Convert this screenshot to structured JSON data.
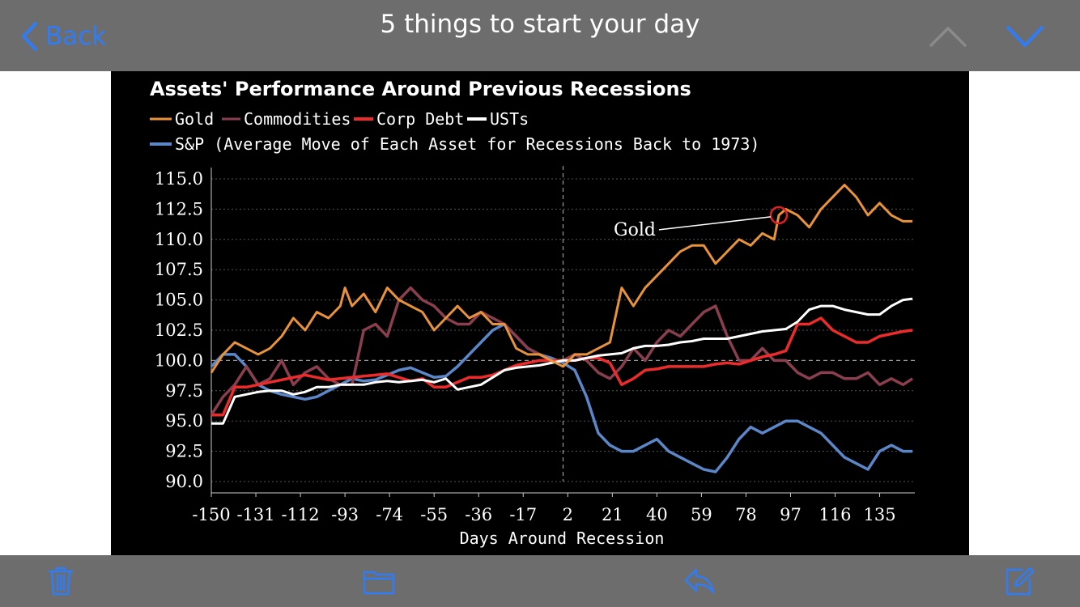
{
  "nav": {
    "back_label": "Back",
    "title": "5 things to start your day",
    "up_icon": "chevron-up-icon",
    "down_icon": "chevron-down-icon"
  },
  "toolbar": {
    "icons": [
      "trash-icon",
      "folder-icon",
      "reply-icon",
      "compose-icon"
    ]
  },
  "colors": {
    "accent": "#2f7df6",
    "bar": "#6d6d6d",
    "gold": "#e8923a",
    "commodities": "#8b3f4e",
    "corp_debt": "#ee2b2b",
    "usts": "#ffffff",
    "sp": "#5b87c9"
  },
  "chart_data": {
    "type": "line",
    "title": "Assets' Performance Around Previous Recessions",
    "legend": [
      "Gold",
      "Commodities",
      "Corp Debt",
      "USTs"
    ],
    "legend_note": "S&P (Average Move of Each Asset for Recessions Back to 1973)",
    "xlabel": "Days Around Recession",
    "ylabel": "",
    "xlim": [
      -150,
      150
    ],
    "ylim": [
      90,
      115
    ],
    "x_ticks": [
      "-150",
      "-131",
      "-112",
      "-93",
      "-74",
      "-55",
      "-36",
      "-17",
      "2",
      "21",
      "40",
      "59",
      "78",
      "97",
      "116",
      "135"
    ],
    "y_ticks": [
      "115.0",
      "112.5",
      "110.0",
      "107.5",
      "105.0",
      "102.5",
      "100.0",
      "97.5",
      "95.0",
      "92.5",
      "90.0"
    ],
    "annotation": {
      "text": "Gold",
      "x": 92,
      "y": 112
    },
    "series": [
      {
        "name": "Gold",
        "color": "#e8923a",
        "x": [
          -150,
          -145,
          -140,
          -135,
          -130,
          -125,
          -120,
          -115,
          -110,
          -105,
          -100,
          -95,
          -93,
          -90,
          -85,
          -80,
          -75,
          -70,
          -65,
          -60,
          -55,
          -50,
          -45,
          -40,
          -35,
          -30,
          -25,
          -20,
          -15,
          -10,
          -5,
          0,
          5,
          10,
          15,
          20,
          25,
          30,
          35,
          40,
          45,
          50,
          55,
          60,
          65,
          70,
          75,
          80,
          85,
          90,
          92,
          95,
          100,
          105,
          110,
          115,
          120,
          125,
          130,
          135,
          140,
          145,
          149
        ],
        "y": [
          99,
          100.5,
          101.5,
          101,
          100.5,
          101,
          102,
          103.5,
          102.5,
          104,
          103.5,
          104.5,
          106,
          104.5,
          105.5,
          104,
          106,
          105,
          104.5,
          104,
          102.5,
          103.5,
          104.5,
          103.5,
          104,
          103,
          103,
          101,
          100.5,
          100.5,
          100,
          99.5,
          100.5,
          100.5,
          101,
          101.5,
          106,
          104.5,
          106,
          107,
          108,
          109,
          109.5,
          109.5,
          108,
          109,
          110,
          109.5,
          110.5,
          110,
          112,
          112.5,
          112,
          111,
          112.5,
          113.5,
          114.5,
          113.5,
          112,
          113,
          112,
          111.5,
          111.5
        ]
      },
      {
        "name": "Commodities",
        "color": "#8b3f4e",
        "x": [
          -150,
          -145,
          -140,
          -135,
          -130,
          -125,
          -120,
          -115,
          -110,
          -105,
          -100,
          -95,
          -90,
          -85,
          -80,
          -75,
          -70,
          -65,
          -60,
          -55,
          -50,
          -45,
          -40,
          -35,
          -30,
          -25,
          -20,
          -15,
          -10,
          -5,
          0,
          5,
          10,
          15,
          20,
          25,
          30,
          35,
          40,
          45,
          50,
          55,
          60,
          65,
          70,
          75,
          80,
          85,
          90,
          95,
          100,
          105,
          110,
          115,
          120,
          125,
          130,
          135,
          140,
          145,
          149
        ],
        "y": [
          95.5,
          97,
          98,
          99.5,
          98,
          98.5,
          100,
          98,
          99,
          99.5,
          98.5,
          98,
          98,
          102.5,
          103,
          102,
          105,
          106,
          105,
          104.5,
          103.5,
          103,
          103,
          104,
          103.5,
          103,
          102,
          101,
          100.5,
          100,
          100,
          100.5,
          100,
          99,
          98.5,
          99.5,
          101,
          100,
          101.5,
          102.5,
          102,
          103,
          104,
          104.5,
          102,
          100,
          100,
          101,
          100,
          100,
          99,
          98.5,
          99,
          99,
          98.5,
          98.5,
          99,
          98,
          98.5,
          98,
          98.5
        ]
      },
      {
        "name": "Corp Debt",
        "color": "#ee2b2b",
        "x": [
          -150,
          -145,
          -140,
          -135,
          -130,
          -125,
          -120,
          -115,
          -110,
          -105,
          -100,
          -95,
          -90,
          -85,
          -80,
          -75,
          -70,
          -65,
          -60,
          -55,
          -50,
          -45,
          -40,
          -35,
          -30,
          -25,
          -20,
          -15,
          -10,
          -5,
          0,
          5,
          10,
          15,
          20,
          25,
          30,
          35,
          40,
          45,
          50,
          55,
          60,
          65,
          70,
          75,
          80,
          85,
          90,
          95,
          100,
          105,
          110,
          115,
          120,
          125,
          130,
          135,
          140,
          145,
          149
        ],
        "y": [
          95.5,
          95.5,
          97.8,
          97.8,
          98,
          98.2,
          98.4,
          98.6,
          98.8,
          98.6,
          98.4,
          98.5,
          98.6,
          98.7,
          98.8,
          98.9,
          98.6,
          98.3,
          98.5,
          97.8,
          97.8,
          98.2,
          98.6,
          98.6,
          98.8,
          99.2,
          99.6,
          99.8,
          100,
          100,
          100,
          100,
          100.2,
          100.2,
          99.8,
          98,
          98.5,
          99.2,
          99.3,
          99.5,
          99.5,
          99.5,
          99.5,
          99.7,
          99.8,
          99.7,
          100,
          100.3,
          100.5,
          100.8,
          103,
          103,
          103.5,
          102.5,
          102,
          101.5,
          101.5,
          102,
          102.2,
          102.4,
          102.5
        ]
      },
      {
        "name": "USTs",
        "color": "#ffffff",
        "x": [
          -150,
          -145,
          -140,
          -135,
          -130,
          -125,
          -120,
          -115,
          -110,
          -105,
          -100,
          -95,
          -90,
          -85,
          -80,
          -75,
          -70,
          -65,
          -60,
          -55,
          -50,
          -45,
          -40,
          -35,
          -30,
          -25,
          -20,
          -15,
          -10,
          -5,
          0,
          5,
          10,
          15,
          20,
          25,
          30,
          35,
          40,
          45,
          50,
          55,
          60,
          65,
          70,
          75,
          80,
          85,
          90,
          95,
          100,
          105,
          110,
          115,
          120,
          125,
          130,
          135,
          140,
          145,
          149
        ],
        "y": [
          94.8,
          94.8,
          97,
          97.2,
          97.4,
          97.5,
          97.5,
          97.2,
          97.4,
          97.8,
          97.8,
          98,
          98,
          98,
          98.2,
          98.3,
          98.2,
          98.3,
          98.4,
          98.2,
          98.5,
          97.6,
          97.8,
          98,
          98.6,
          99.2,
          99.4,
          99.5,
          99.6,
          99.8,
          100,
          100,
          100.2,
          100.4,
          100.5,
          100.6,
          101,
          101.2,
          101.2,
          101.3,
          101.5,
          101.6,
          101.8,
          101.8,
          101.8,
          102,
          102.2,
          102.4,
          102.5,
          102.6,
          103.2,
          104.2,
          104.5,
          104.5,
          104.2,
          104,
          103.8,
          103.8,
          104.5,
          105,
          105.1
        ]
      },
      {
        "name": "S&P",
        "color": "#5b87c9",
        "x": [
          -150,
          -145,
          -140,
          -135,
          -130,
          -125,
          -120,
          -115,
          -110,
          -105,
          -100,
          -95,
          -90,
          -85,
          -80,
          -75,
          -70,
          -65,
          -60,
          -55,
          -50,
          -45,
          -40,
          -35,
          -30,
          -25,
          -20,
          -15,
          -10,
          -5,
          0,
          5,
          10,
          15,
          20,
          25,
          30,
          35,
          40,
          45,
          50,
          55,
          60,
          65,
          70,
          75,
          80,
          85,
          90,
          95,
          100,
          105,
          110,
          115,
          120,
          125,
          130,
          135,
          140,
          145,
          149
        ],
        "y": [
          99.5,
          100.5,
          100.5,
          99.5,
          98,
          97.5,
          97.2,
          97,
          96.8,
          97,
          97.5,
          98,
          98.5,
          98.3,
          98.4,
          98.8,
          99.2,
          99.4,
          99,
          98.6,
          98.7,
          99.5,
          100.5,
          101.5,
          102.5,
          103,
          102,
          101,
          100.5,
          100.2,
          99.8,
          99.2,
          97,
          94,
          93,
          92.5,
          92.5,
          93,
          93.5,
          92.5,
          92,
          91.5,
          91,
          90.8,
          92,
          93.5,
          94.5,
          94,
          94.5,
          95,
          95,
          94.5,
          94,
          93,
          92,
          91.5,
          91,
          92.5,
          93,
          92.5,
          92.5
        ]
      }
    ]
  }
}
